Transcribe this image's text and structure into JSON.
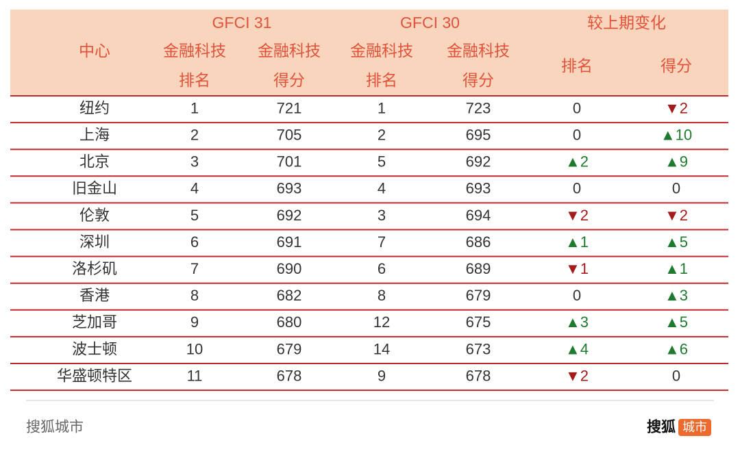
{
  "header": {
    "center": "中心",
    "groups": [
      "GFCI 31",
      "GFCI 30",
      "较上期变化"
    ],
    "columns": [
      [
        "金融科技",
        "排名"
      ],
      [
        "金融科技",
        "得分"
      ],
      [
        "金融科技",
        "排名"
      ],
      [
        "金融科技",
        "得分"
      ],
      [
        "排名"
      ],
      [
        "得分"
      ]
    ]
  },
  "table": {
    "rows": [
      [
        "纽约",
        1,
        721,
        1,
        723,
        "0",
        "▼2"
      ],
      [
        "上海",
        2,
        705,
        2,
        695,
        "0",
        "▲10"
      ],
      [
        "北京",
        3,
        701,
        5,
        692,
        "▲2",
        "▲9"
      ],
      [
        "旧金山",
        4,
        693,
        4,
        693,
        "0",
        "0"
      ],
      [
        "伦敦",
        5,
        692,
        3,
        694,
        "▼2",
        "▼2"
      ],
      [
        "深圳",
        6,
        691,
        7,
        686,
        "▲1",
        "▲5"
      ],
      [
        "洛杉矶",
        7,
        690,
        6,
        689,
        "▼1",
        "▲1"
      ],
      [
        "香港",
        8,
        682,
        8,
        679,
        "0",
        "▲3"
      ],
      [
        "芝加哥",
        9,
        680,
        12,
        675,
        "▲3",
        "▲5"
      ],
      [
        "波士顿",
        10,
        679,
        14,
        673,
        "▲4",
        "▲6"
      ],
      [
        "华盛顿特区",
        11,
        678,
        9,
        678,
        "▼2",
        "0"
      ]
    ]
  },
  "footer": {
    "source": "搜狐城市",
    "logo_text": "搜狐",
    "logo_badge": "城市"
  }
}
